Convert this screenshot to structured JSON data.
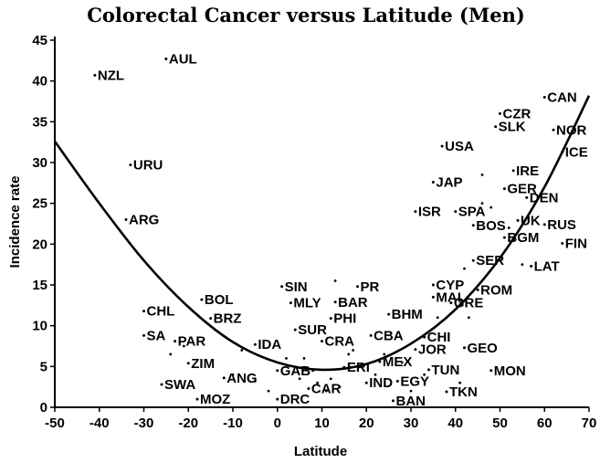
{
  "chart_data": {
    "type": "scatter",
    "title": "Colorectal Cancer versus Latitude (Men)",
    "xlabel": "Latitude",
    "ylabel": "Incidence rate",
    "xlim": [
      -50,
      70
    ],
    "ylim": [
      0,
      45
    ],
    "xticks": [
      -50,
      -40,
      -30,
      -20,
      -10,
      0,
      10,
      20,
      30,
      40,
      50,
      60,
      70
    ],
    "yticks": [
      0,
      5,
      10,
      15,
      20,
      25,
      30,
      35,
      40,
      45
    ],
    "grid": false,
    "legend": "none",
    "points": [
      {
        "label": "AUL",
        "x": -25,
        "y": 42.7
      },
      {
        "label": "NZL",
        "x": -41,
        "y": 40.7
      },
      {
        "label": "URU",
        "x": -33,
        "y": 29.7
      },
      {
        "label": "ARG",
        "x": -34,
        "y": 23.0
      },
      {
        "label": "CHL",
        "x": -30,
        "y": 11.8
      },
      {
        "label": "SA",
        "x": -30,
        "y": 8.8
      },
      {
        "label": "BOL",
        "x": -17,
        "y": 13.2
      },
      {
        "label": "PAR",
        "x": -23,
        "y": 8.1
      },
      {
        "label": "BRZ",
        "x": -15,
        "y": 10.9
      },
      {
        "label": "ZIM",
        "x": -20,
        "y": 5.4
      },
      {
        "label": "SWA",
        "x": -26,
        "y": 2.8
      },
      {
        "label": "ANG",
        "x": -12,
        "y": 3.6
      },
      {
        "label": "MOZ",
        "x": -18,
        "y": 1.0
      },
      {
        "label": "IDA",
        "x": -5,
        "y": 7.7
      },
      {
        "label": "GAB",
        "x": 0,
        "y": 4.5
      },
      {
        "label": "DRC",
        "x": 0,
        "y": 1.0
      },
      {
        "label": "SIN",
        "x": 1,
        "y": 14.8
      },
      {
        "label": "MLY",
        "x": 3,
        "y": 12.8
      },
      {
        "label": "BAR",
        "x": 13,
        "y": 12.9
      },
      {
        "label": "PR",
        "x": 18,
        "y": 14.8
      },
      {
        "label": "PHI",
        "x": 12,
        "y": 10.9
      },
      {
        "label": "SUR",
        "x": 4,
        "y": 9.5
      },
      {
        "label": "CRA",
        "x": 10,
        "y": 8.1
      },
      {
        "label": "BHM",
        "x": 25,
        "y": 11.4
      },
      {
        "label": "CBA",
        "x": 21,
        "y": 8.8
      },
      {
        "label": "CAR",
        "x": 7,
        "y": 2.3
      },
      {
        "label": "ERI",
        "x": 15,
        "y": 4.9
      },
      {
        "label": "MEX",
        "x": 23,
        "y": 5.6
      },
      {
        "label": "IND",
        "x": 20,
        "y": 3.0
      },
      {
        "label": "EGY",
        "x": 27,
        "y": 3.2
      },
      {
        "label": "BAN",
        "x": 26,
        "y": 0.8
      },
      {
        "label": "CHI",
        "x": 33,
        "y": 8.6
      },
      {
        "label": "JOR",
        "x": 31,
        "y": 7.1
      },
      {
        "label": "TUN",
        "x": 34,
        "y": 4.6
      },
      {
        "label": "TKN",
        "x": 38,
        "y": 1.9
      },
      {
        "label": "GEO",
        "x": 42,
        "y": 7.3
      },
      {
        "label": "MON",
        "x": 48,
        "y": 4.5
      },
      {
        "label": "CYP",
        "x": 35,
        "y": 15.0
      },
      {
        "label": "MAL",
        "x": 35,
        "y": 13.5
      },
      {
        "label": "GRE",
        "x": 39,
        "y": 12.8
      },
      {
        "label": "ROM",
        "x": 45,
        "y": 14.4
      },
      {
        "label": "SER",
        "x": 44,
        "y": 18.0
      },
      {
        "label": "LAT",
        "x": 57,
        "y": 17.3
      },
      {
        "label": "USA",
        "x": 37,
        "y": 32.0
      },
      {
        "label": "JAP",
        "x": 35,
        "y": 27.6
      },
      {
        "label": "ISR",
        "x": 31,
        "y": 24.0
      },
      {
        "label": "SPA",
        "x": 40,
        "y": 24.0
      },
      {
        "label": "BOS",
        "x": 44,
        "y": 22.3
      },
      {
        "label": "UK",
        "x": 54,
        "y": 22.9
      },
      {
        "label": "BGM",
        "x": 51,
        "y": 20.8
      },
      {
        "label": "CZR",
        "x": 50,
        "y": 36.0
      },
      {
        "label": "SLK",
        "x": 49,
        "y": 34.4
      },
      {
        "label": "CAN",
        "x": 60,
        "y": 38.0
      },
      {
        "label": "NOR",
        "x": 62,
        "y": 34.0
      },
      {
        "label": "ICE",
        "x": 64,
        "y": 31.3
      },
      {
        "label": "IRE",
        "x": 53,
        "y": 29.0
      },
      {
        "label": "GER",
        "x": 51,
        "y": 26.8
      },
      {
        "label": "DEN",
        "x": 56,
        "y": 25.7
      },
      {
        "label": "RUS",
        "x": 60,
        "y": 22.4
      },
      {
        "label": "FIN",
        "x": 64,
        "y": 20.1
      }
    ],
    "unlabeled_points": [
      {
        "x": -24,
        "y": 6.5
      },
      {
        "x": -21,
        "y": 7.5
      },
      {
        "x": -14,
        "y": 9.5
      },
      {
        "x": -8,
        "y": 7.0
      },
      {
        "x": -10,
        "y": 4.0
      },
      {
        "x": -5,
        "y": 3.2
      },
      {
        "x": -2,
        "y": 2.0
      },
      {
        "x": 2,
        "y": 6.0
      },
      {
        "x": 5,
        "y": 3.5
      },
      {
        "x": 6,
        "y": 6.0
      },
      {
        "x": 8,
        "y": 4.5
      },
      {
        "x": 9,
        "y": 3.0
      },
      {
        "x": 11,
        "y": 2.0
      },
      {
        "x": 12,
        "y": 3.5
      },
      {
        "x": 14,
        "y": 2.5
      },
      {
        "x": 16,
        "y": 6.5
      },
      {
        "x": 17,
        "y": 7.0
      },
      {
        "x": 13,
        "y": 15.5
      },
      {
        "x": 22,
        "y": 4.0
      },
      {
        "x": 24,
        "y": 6.5
      },
      {
        "x": 28,
        "y": 5.5
      },
      {
        "x": 30,
        "y": 2.0
      },
      {
        "x": 33,
        "y": 4.0
      },
      {
        "x": 36,
        "y": 11.0
      },
      {
        "x": 41,
        "y": 3.0
      },
      {
        "x": 43,
        "y": 11.0
      },
      {
        "x": 46,
        "y": 25.0
      },
      {
        "x": 46,
        "y": 28.5
      },
      {
        "x": 48,
        "y": 24.5
      },
      {
        "x": 52,
        "y": 22.0
      },
      {
        "x": 55,
        "y": 17.5
      },
      {
        "x": 42,
        "y": 17.0
      }
    ],
    "fit_curve": {
      "type": "quadratic",
      "points": [
        [
          -50,
          32.6
        ],
        [
          -40,
          25.0
        ],
        [
          -30,
          18.0
        ],
        [
          -20,
          12.3
        ],
        [
          -10,
          8.0
        ],
        [
          0,
          5.5
        ],
        [
          10,
          4.6
        ],
        [
          20,
          5.3
        ],
        [
          30,
          7.8
        ],
        [
          40,
          12.0
        ],
        [
          50,
          18.3
        ],
        [
          60,
          27.0
        ],
        [
          70,
          38.2
        ]
      ]
    }
  }
}
